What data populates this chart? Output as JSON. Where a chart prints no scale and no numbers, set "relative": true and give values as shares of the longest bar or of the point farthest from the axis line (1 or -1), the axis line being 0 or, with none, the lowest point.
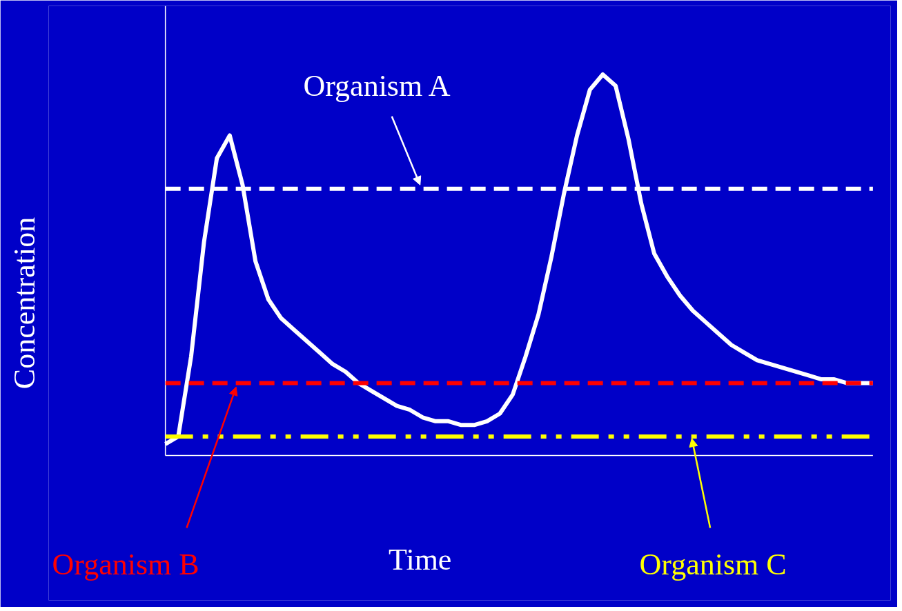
{
  "chart_data": {
    "type": "line",
    "relative": true,
    "xlabel": "Time",
    "ylabel": "Concentration",
    "grid": false,
    "marker": "none",
    "line_style": "solid",
    "tick_labels": false,
    "categories": [
      null,
      null,
      null,
      null,
      null,
      null,
      null,
      null,
      null,
      null,
      null,
      null,
      null,
      null,
      null,
      null,
      null,
      null,
      null,
      null,
      null,
      null,
      null,
      null,
      null,
      null,
      null,
      null,
      null,
      null,
      null,
      null,
      null,
      null,
      null,
      null,
      null,
      null,
      null,
      null,
      null,
      null,
      null,
      null,
      null,
      null,
      null,
      null,
      null,
      null,
      null,
      null,
      null,
      null,
      null,
      null
    ],
    "series": [
      {
        "color": "#ffffff",
        "values": [
          0.03,
          0.05,
          0.26,
          0.56,
          0.78,
          0.84,
          0.71,
          0.51,
          0.41,
          0.36,
          0.33,
          0.3,
          0.27,
          0.24,
          0.22,
          0.19,
          0.17,
          0.15,
          0.13,
          0.12,
          0.1,
          0.09,
          0.09,
          0.08,
          0.08,
          0.09,
          0.11,
          0.16,
          0.26,
          0.37,
          0.52,
          0.69,
          0.84,
          0.96,
          1.0,
          0.97,
          0.83,
          0.66,
          0.53,
          0.47,
          0.42,
          0.38,
          0.35,
          0.32,
          0.29,
          0.27,
          0.25,
          0.24,
          0.23,
          0.22,
          0.21,
          0.2,
          0.2,
          0.19,
          0.19,
          0.19
        ]
      }
    ],
    "ref_lines": [
      {
        "axis": "y",
        "value": 0.7,
        "label": "Organism A",
        "color": "#ffffff",
        "line_style": "dashed"
      },
      {
        "axis": "y",
        "value": 0.19,
        "label": "Organism B",
        "color": "#ff0000",
        "line_style": "dashed"
      },
      {
        "axis": "y",
        "value": 0.05,
        "label": "Organism C",
        "color": "#ffff00",
        "line_style": "dashdot"
      }
    ]
  }
}
